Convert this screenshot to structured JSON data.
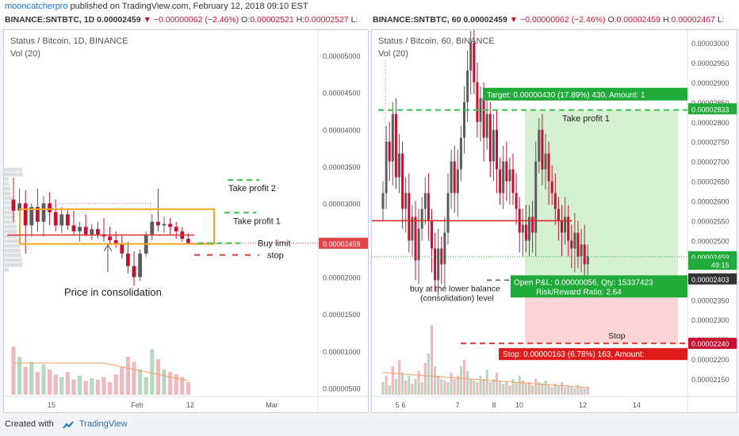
{
  "header": {
    "author": "mooncatcherpro",
    "published": "published on TradingView.com, February 12, 2018 09:10 EST"
  },
  "left_ticker": {
    "symbol": "BINANCE:SNTBTC, 1D",
    "price": "0.00002459",
    "change": "−0.00000062 (−2.46%)",
    "open_label": "O:",
    "open": "0.00002521",
    "high_label": "H:",
    "high": "0.00002527",
    "low_label": "L:"
  },
  "right_ticker": {
    "symbol": "BINANCE:SNTBTC, 60",
    "price": "0.00002459",
    "change": "−0.00000062 (−2.46%)",
    "open_label": "O:",
    "open": "0.00002459",
    "high_label": "H:",
    "high": "0.00002467",
    "low_label": "L:"
  },
  "footer": {
    "created_with": "Created with",
    "brand": "TradingView"
  },
  "colors": {
    "up": "#5c5c5c",
    "down": "#c8102e",
    "support_line": "#d62d2d",
    "box": "#f5a623",
    "take_profit": "#2ecc40",
    "stop": "#e53935",
    "profit_zone": "#d6f0d2",
    "loss_zone": "#fbd5d5",
    "vol_up": "#b7d9c0",
    "vol_down": "#f0b8bf",
    "ma": "#f0a060",
    "price_tag": "#e0434a"
  },
  "chart_data": [
    {
      "type": "candlestick",
      "title": "Status / Bitcoin, 1D, BINANCE",
      "subtitle": "Vol (20)",
      "y_ticks": [
        "0.00005000",
        "0.00004500",
        "0.00004000",
        "0.00003500",
        "0.00003000",
        "0.00002500",
        "0.00002000",
        "0.00001500",
        "0.00001000",
        "0.00000500"
      ],
      "x_ticks": [
        "15",
        "Feb",
        "12",
        "Mar"
      ],
      "ylim": [
        3e-06,
        5.28e-05
      ],
      "last_price_label": "0.00002459",
      "candles": [
        [
          3.05e-05,
          3.35e-05,
          2.75e-05,
          2.9e-05
        ],
        [
          2.9e-05,
          3.2e-05,
          2.65e-05,
          3e-05
        ],
        [
          3e-05,
          3.18e-05,
          2.32e-05,
          2.7e-05
        ],
        [
          2.7e-05,
          3e-05,
          2.55e-05,
          2.95e-05
        ],
        [
          2.95e-05,
          3.2e-05,
          2.62e-05,
          2.75e-05
        ],
        [
          2.75e-05,
          3.1e-05,
          2.55e-05,
          3e-05
        ],
        [
          3e-05,
          3.15e-05,
          2.7e-05,
          2.88e-05
        ],
        [
          2.88e-05,
          3.05e-05,
          2.62e-05,
          2.7e-05
        ],
        [
          2.7e-05,
          2.95e-05,
          2.6e-05,
          2.85e-05
        ],
        [
          2.85e-05,
          2.92e-05,
          2.64e-05,
          2.7e-05
        ],
        [
          2.7e-05,
          2.9e-05,
          2.56e-05,
          2.62e-05
        ],
        [
          2.62e-05,
          2.75e-05,
          2.48e-05,
          2.68e-05
        ],
        [
          2.68e-05,
          2.85e-05,
          2.55e-05,
          2.58e-05
        ],
        [
          2.58e-05,
          2.72e-05,
          2.5e-05,
          2.65e-05
        ],
        [
          2.65e-05,
          2.75e-05,
          2.52e-05,
          2.58e-05
        ],
        [
          2.58e-05,
          2.8e-05,
          2.48e-05,
          2.55e-05
        ],
        [
          2.55e-05,
          2.68e-05,
          2.45e-05,
          2.5e-05
        ],
        [
          2.5e-05,
          2.62e-05,
          2.4e-05,
          2.45e-05
        ],
        [
          2.45e-05,
          2.58e-05,
          2.25e-05,
          2.32e-05
        ],
        [
          2.32e-05,
          2.48e-05,
          2.05e-05,
          2.15e-05
        ],
        [
          2.15e-05,
          2.35e-05,
          1.88e-05,
          2e-05
        ],
        [
          2e-05,
          2.38e-05,
          1.95e-05,
          2.32e-05
        ],
        [
          2.32e-05,
          2.62e-05,
          2.28e-05,
          2.58e-05
        ],
        [
          2.58e-05,
          2.85e-05,
          2.5e-05,
          2.75e-05
        ],
        [
          2.75e-05,
          3.2e-05,
          2.62e-05,
          2.7e-05
        ],
        [
          2.7e-05,
          2.82e-05,
          2.6e-05,
          2.72e-05
        ],
        [
          2.72e-05,
          2.8e-05,
          2.58e-05,
          2.68e-05
        ],
        [
          2.68e-05,
          2.75e-05,
          2.52e-05,
          2.62e-05
        ],
        [
          2.62e-05,
          2.68e-05,
          2.48e-05,
          2.52e-05
        ],
        [
          2.52e-05,
          2.6e-05,
          2.45e-05,
          2.46e-05
        ]
      ],
      "volumes": [
        38,
        30,
        22,
        26,
        18,
        24,
        20,
        16,
        14,
        18,
        12,
        15,
        11,
        13,
        12,
        14,
        10,
        16,
        22,
        30,
        26,
        20,
        14,
        36,
        28,
        20,
        18,
        16,
        14,
        10
      ],
      "annotations": {
        "box": [
          2.45e-05,
          2.92e-05
        ],
        "support": 2.57e-05,
        "take_profit_2": 3.25e-05,
        "take_profit_1": 2.83e-05,
        "buy_limit": 2.46e-05,
        "stop": 2.3e-05,
        "labels": {
          "take_profit_2": "Take profit 2",
          "take_profit_1": "Take profit 1",
          "buy_limit": "Buy limit",
          "stop": "stop",
          "consolidation": "Price in consolidation"
        }
      }
    },
    {
      "type": "candlestick",
      "title": "Status / Bitcoin, 60, BINANCE",
      "subtitle": "Vol (20)",
      "y_ticks": [
        "0.00003000",
        "0.00002950",
        "0.00002900",
        "0.00002850",
        "0.00002800",
        "0.00002750",
        "0.00002700",
        "0.00002650",
        "0.00002600",
        "0.00002550",
        "0.00002500",
        "0.00002450",
        "0.00002400",
        "0.00002350",
        "0.00002300",
        "0.00002250",
        "0.00002200",
        "0.00002150"
      ],
      "x_ticks": [
        "5",
        "6",
        "7",
        "8",
        "10",
        "12",
        "14"
      ],
      "ylim": [
        2.11e-05,
        3.02e-05
      ],
      "price_tags": [
        {
          "label": "0.00002833",
          "value": 2.833e-05,
          "color": "#1faa3a"
        },
        {
          "label": "0.00002459",
          "value": 2.459e-05,
          "color": "#1faa3a"
        },
        {
          "label": "49:15",
          "value": 2.44e-05,
          "color": "#ffffff"
        },
        {
          "label": "0.00002403",
          "value": 2.403e-05,
          "color": "#333333"
        },
        {
          "label": "0.00002240",
          "value": 2.24e-05,
          "color": "#c8102e"
        }
      ],
      "closes": [
        2.62e-05,
        2.75e-05,
        2.7e-05,
        2.82e-05,
        2.66e-05,
        2.72e-05,
        2.58e-05,
        2.62e-05,
        2.5e-05,
        2.56e-05,
        2.45e-05,
        2.53e-05,
        2.58e-05,
        2.62e-05,
        2.55e-05,
        2.48e-05,
        2.4e-05,
        2.48e-05,
        2.44e-05,
        2.52e-05,
        2.62e-05,
        2.7e-05,
        2.62e-05,
        2.68e-05,
        2.76e-05,
        2.85e-05,
        2.93e-05,
        3e-05,
        2.9e-05,
        2.8e-05,
        2.86e-05,
        2.76e-05,
        2.82e-05,
        2.7e-05,
        2.78e-05,
        2.68e-05,
        2.62e-05,
        2.7e-05,
        2.65e-05,
        2.68e-05,
        2.62e-05,
        2.58e-05,
        2.52e-05,
        2.54e-05,
        2.5e-05,
        2.56e-05,
        2.52e-05,
        2.7e-05,
        2.78e-05,
        2.68e-05,
        2.72e-05,
        2.65e-05,
        2.62e-05,
        2.58e-05,
        2.55e-05,
        2.52e-05,
        2.56e-05,
        2.5e-05,
        2.48e-05,
        2.52e-05,
        2.46e-05,
        2.49e-05,
        2.44e-05,
        2.46e-05
      ],
      "volumes": [
        8,
        12,
        6,
        18,
        10,
        22,
        14,
        9,
        12,
        7,
        10,
        15,
        8,
        20,
        26,
        44,
        18,
        12,
        10,
        9,
        8,
        14,
        10,
        12,
        18,
        22,
        15,
        10,
        9,
        8,
        12,
        10,
        16,
        8,
        10,
        14,
        9,
        7,
        8,
        6,
        10,
        8,
        12,
        9,
        7,
        8,
        6,
        10,
        8,
        7,
        9,
        6,
        5,
        7,
        6,
        8,
        5,
        6,
        5,
        4,
        6,
        5,
        4,
        5
      ],
      "annotations": {
        "support": 2.55e-05,
        "target_line": 2.83e-05,
        "stop_line": 2.24e-05,
        "entry_line": 2.4e-05,
        "profit_zone": [
          2.41e-05,
          2.83e-05
        ],
        "loss_zone": [
          2.24e-05,
          2.37e-05
        ],
        "labels": {
          "target": "Target: 0.00000430 (17.89%) 430, Amount: 1",
          "take_profit": "Take profit 1",
          "pnl": "Open P&L: 0.00000056, Qty: 15337423",
          "rr": "Risk/Reward Ratio: 2.64",
          "stop_label": "Stop",
          "stop_box": "Stop: 0.00000163 (6.78%) 163, Amount:",
          "buy_note_1": "buy at the lower balance",
          "buy_note_2": "(consolidation) level"
        }
      }
    }
  ]
}
